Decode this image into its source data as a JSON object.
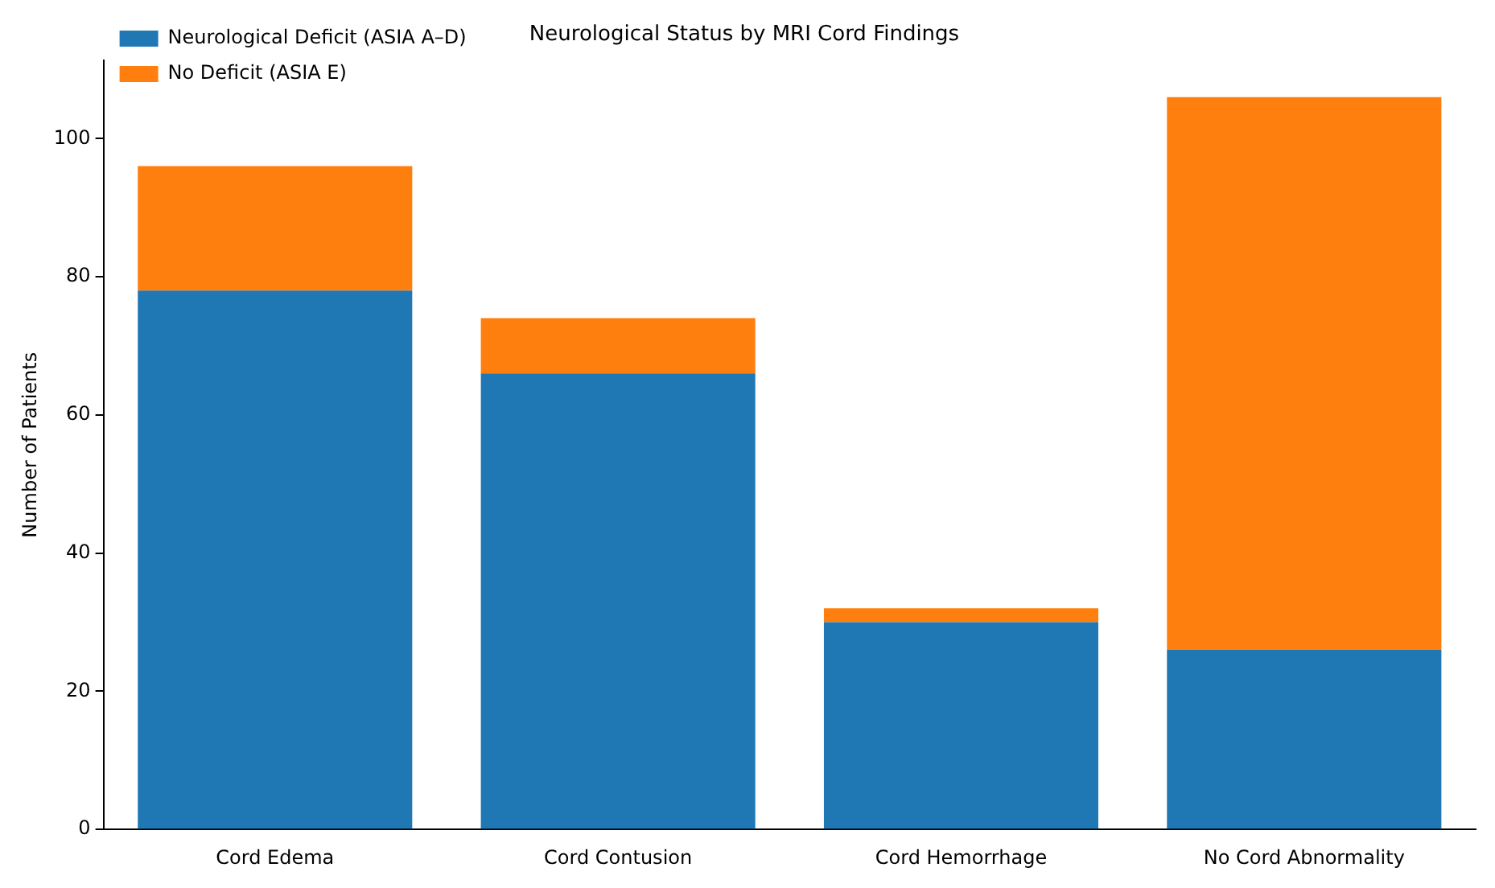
{
  "chart_data": {
    "type": "bar",
    "title": "Neurological Status by MRI Cord Findings",
    "ylabel": "Number of Patients",
    "categories": [
      "Cord Edema",
      "Cord Contusion",
      "Cord Hemorrhage",
      "No Cord Abnormality"
    ],
    "series": [
      {
        "name": "Neurological Deficit (ASIA A–D)",
        "color": "#1f77b4",
        "values": [
          78,
          66,
          30,
          26
        ]
      },
      {
        "name": "No Deficit (ASIA E)",
        "color": "#ff7f0e",
        "values": [
          18,
          8,
          2,
          80
        ]
      }
    ],
    "stacked": true,
    "ylim": [
      0,
      111.3
    ],
    "yticks": [
      0,
      20,
      40,
      60,
      80,
      100
    ],
    "grid": false,
    "legend": "top left"
  }
}
